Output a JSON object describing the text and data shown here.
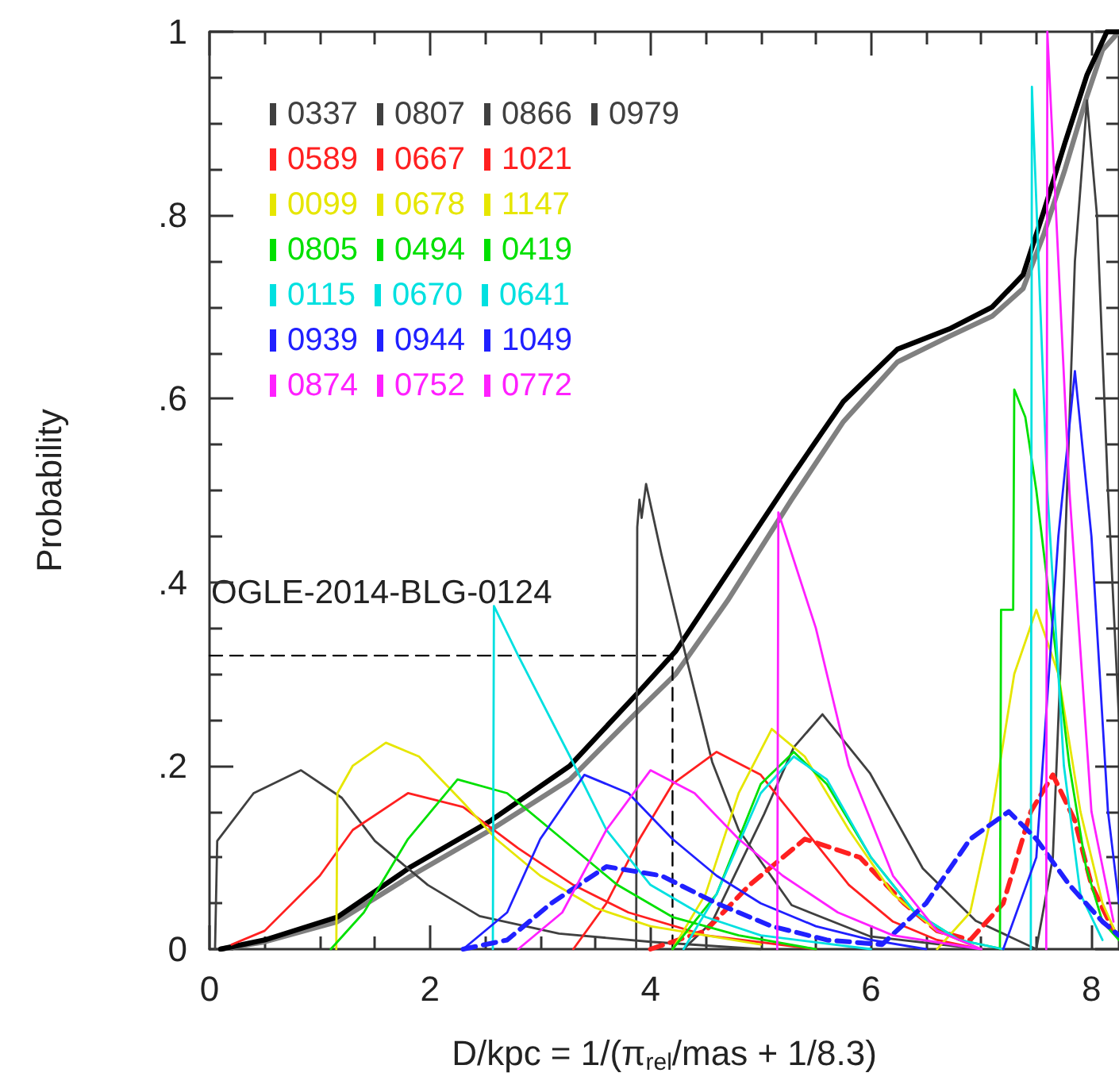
{
  "chart_data": {
    "type": "line",
    "xlabel": "D/kpc = 1/(π$_{rel}$/mas + 1/8.3)",
    "ylabel": "Probability",
    "xlim": [
      0,
      8.25
    ],
    "xticks": [
      0,
      2,
      4,
      6,
      8
    ],
    "ylim": [
      0,
      1
    ],
    "yticks": [
      0,
      {
        "value": 0.2,
        "label": ".2"
      },
      {
        "value": 0.4,
        "label": ".4"
      },
      {
        "value": 0.6,
        "label": ".6"
      },
      {
        "value": 0.8,
        "label": ".8"
      },
      1
    ],
    "grid": false,
    "legend": "top left",
    "marker": "none",
    "line_style": "solid",
    "annotations": [
      "OGLE-2014-BLG-0124"
    ],
    "series": [
      {
        "name": "0337",
        "color": "#404040",
        "x": [
          0.05,
          0.07,
          0.4,
          0.83,
          1.2,
          1.5,
          1.98,
          2.45,
          3.17,
          4,
          5
        ],
        "values": [
          0,
          0.118,
          0.17,
          0.195,
          0.165,
          0.118,
          0.07,
          0.036,
          0.017,
          0.008,
          0
        ]
      },
      {
        "name": "0807",
        "color": "#404040",
        "x": [
          3.87,
          3.88,
          3.9,
          3.92,
          3.96,
          4.1,
          4.32,
          4.56,
          4.8,
          5.28,
          5.99,
          7
        ],
        "values": [
          0,
          0.46,
          0.49,
          0.47,
          0.507,
          0.43,
          0.32,
          0.204,
          0.13,
          0.048,
          0.014,
          0
        ]
      },
      {
        "name": "0866",
        "color": "#404040",
        "x": [
          4.3,
          4.56,
          5.03,
          5.3,
          5.56,
          5.99,
          6.47,
          6.95,
          7.5
        ],
        "values": [
          0,
          0.03,
          0.147,
          0.22,
          0.256,
          0.192,
          0.088,
          0.031,
          0
        ]
      },
      {
        "name": "0979",
        "color": "#404040",
        "x": [
          7.5,
          7.65,
          7.75,
          7.85,
          7.96,
          8.05,
          8.15,
          8.25
        ],
        "values": [
          0,
          0.1,
          0.4,
          0.75,
          0.925,
          0.8,
          0.5,
          0.25
        ]
      },
      {
        "name": "0589",
        "color": "#ff2020",
        "x": [
          0.2,
          0.5,
          1,
          1.3,
          1.8,
          2.3,
          2.8,
          3.3,
          3.8,
          4.5,
          5.5
        ],
        "values": [
          0.005,
          0.02,
          0.08,
          0.13,
          0.17,
          0.155,
          0.11,
          0.07,
          0.04,
          0.015,
          0
        ]
      },
      {
        "name": "0667",
        "color": "#ff2020",
        "x": [
          3.3,
          3.6,
          3.9,
          4.2,
          4.6,
          5,
          5.4,
          5.8,
          6.2,
          6.6,
          7
        ],
        "values": [
          0,
          0.05,
          0.12,
          0.18,
          0.215,
          0.19,
          0.13,
          0.07,
          0.03,
          0.01,
          0
        ]
      },
      {
        "name": "1021",
        "color": "#ff2020",
        "line_style": "dashed",
        "x": [
          4,
          4.5,
          4.9,
          5.4,
          5.9,
          6.3,
          6.6,
          6.9,
          7.2,
          7.45,
          7.65,
          7.85,
          8,
          8.2
        ],
        "values": [
          0,
          0.02,
          0.07,
          0.12,
          0.1,
          0.05,
          0.02,
          0.01,
          0.05,
          0.15,
          0.19,
          0.14,
          0.07,
          0.02
        ]
      },
      {
        "name": "0099",
        "color": "#e6e600",
        "x": [
          1.15,
          1.16,
          1.3,
          1.6,
          1.9,
          2.3,
          2.6,
          3,
          3.5,
          4,
          5
        ],
        "values": [
          0,
          0.17,
          0.2,
          0.225,
          0.21,
          0.16,
          0.12,
          0.08,
          0.045,
          0.025,
          0.005
        ]
      },
      {
        "name": "0678",
        "color": "#e6e600",
        "x": [
          4.2,
          4.5,
          4.8,
          5.1,
          5.4,
          5.8,
          6.2,
          6.6,
          7
        ],
        "values": [
          0,
          0.06,
          0.17,
          0.24,
          0.21,
          0.13,
          0.06,
          0.02,
          0
        ]
      },
      {
        "name": "1147",
        "color": "#e6e600",
        "x": [
          6.6,
          6.9,
          7.1,
          7.3,
          7.5,
          7.7,
          7.9,
          8.1,
          8.25
        ],
        "values": [
          0,
          0.04,
          0.15,
          0.3,
          0.37,
          0.3,
          0.15,
          0.05,
          0.01
        ]
      },
      {
        "name": "0805",
        "color": "#00e000",
        "x": [
          1.1,
          1.4,
          1.8,
          2.25,
          2.7,
          3.2,
          3.7,
          4.2,
          4.8,
          5.5
        ],
        "values": [
          0,
          0.04,
          0.12,
          0.185,
          0.17,
          0.12,
          0.07,
          0.035,
          0.015,
          0
        ]
      },
      {
        "name": "0494",
        "color": "#00e000",
        "x": [
          4.2,
          4.6,
          5,
          5.3,
          5.6,
          6,
          6.4,
          6.8,
          7.2
        ],
        "values": [
          0,
          0.06,
          0.18,
          0.215,
          0.18,
          0.1,
          0.04,
          0.01,
          0
        ]
      },
      {
        "name": "0419",
        "color": "#00e000",
        "x": [
          7.17,
          7.18,
          7.29,
          7.3,
          7.4,
          7.5,
          7.65,
          7.8,
          7.95,
          8.1,
          8.25
        ],
        "values": [
          0,
          0.37,
          0.37,
          0.61,
          0.58,
          0.5,
          0.35,
          0.2,
          0.09,
          0.03,
          0.01
        ]
      },
      {
        "name": "0115",
        "color": "#00e0e0",
        "x": [
          2.57,
          2.58,
          2.8,
          3.27,
          3.6,
          4,
          4.5,
          5,
          6
        ],
        "values": [
          0,
          0.374,
          0.32,
          0.21,
          0.13,
          0.07,
          0.035,
          0.015,
          0
        ]
      },
      {
        "name": "0670",
        "color": "#00e0e0",
        "x": [
          4.3,
          4.6,
          5,
          5.3,
          5.6,
          6,
          6.4,
          6.8,
          7.2
        ],
        "values": [
          0,
          0.06,
          0.17,
          0.21,
          0.185,
          0.1,
          0.04,
          0.01,
          0
        ]
      },
      {
        "name": "0641",
        "color": "#00e0e0",
        "x": [
          7.45,
          7.46,
          7.6,
          7.75,
          7.9,
          8.1
        ],
        "values": [
          0,
          0.94,
          0.5,
          0.2,
          0.06,
          0.01
        ]
      },
      {
        "name": "0939",
        "color": "#2020ff",
        "x": [
          2.3,
          2.7,
          3,
          3.4,
          3.8,
          4.2,
          4.6,
          5,
          5.5,
          6,
          6.5
        ],
        "values": [
          0,
          0.04,
          0.12,
          0.19,
          0.17,
          0.12,
          0.08,
          0.05,
          0.025,
          0.01,
          0
        ]
      },
      {
        "name": "0944",
        "color": "#2020ff",
        "x": [
          7.2,
          7.5,
          7.7,
          7.85,
          8,
          8.15,
          8.25
        ],
        "values": [
          0,
          0.1,
          0.45,
          0.63,
          0.45,
          0.15,
          0.05
        ]
      },
      {
        "name": "1049",
        "color": "#2020ff",
        "line_style": "dashed",
        "x": [
          2.3,
          2.7,
          3.1,
          3.6,
          4.1,
          4.6,
          5.1,
          5.6,
          6.1,
          6.5,
          6.9,
          7.25,
          7.5,
          7.8,
          8.1,
          8.25
        ],
        "values": [
          0,
          0.01,
          0.05,
          0.09,
          0.08,
          0.05,
          0.025,
          0.01,
          0.005,
          0.05,
          0.12,
          0.15,
          0.12,
          0.07,
          0.03,
          0.015
        ]
      },
      {
        "name": "0874",
        "color": "#ff20ff",
        "x": [
          2.8,
          3.2,
          3.6,
          4,
          4.4,
          4.8,
          5.2,
          5.7,
          6.2,
          7
        ],
        "values": [
          0,
          0.04,
          0.13,
          0.195,
          0.17,
          0.12,
          0.08,
          0.04,
          0.015,
          0
        ]
      },
      {
        "name": "0752",
        "color": "#ff20ff",
        "x": [
          5.15,
          5.16,
          5.5,
          5.8,
          6.2,
          6.6,
          7
        ],
        "values": [
          0,
          0.476,
          0.35,
          0.2,
          0.08,
          0.02,
          0
        ]
      },
      {
        "name": "0772",
        "color": "#ff20ff",
        "x": [
          7.59,
          7.6,
          7.8,
          8,
          8.2
        ],
        "values": [
          0,
          1,
          0.5,
          0.15,
          0.03
        ]
      },
      {
        "color": "#808080",
        "x": [
          0.1,
          0.5,
          1.16,
          1.83,
          2.55,
          3.27,
          3.89,
          4.23,
          4.7,
          5.28,
          5.75,
          6.24,
          6.71,
          7.1,
          7.38,
          7.57,
          7.76,
          7.96,
          8.1,
          8.25
        ],
        "values": [
          0,
          0.008,
          0.03,
          0.08,
          0.13,
          0.185,
          0.26,
          0.3,
          0.38,
          0.49,
          0.575,
          0.64,
          0.668,
          0.69,
          0.72,
          0.78,
          0.85,
          0.93,
          0.98,
          1
        ]
      },
      {
        "color": "#000000",
        "x": [
          0.1,
          0.5,
          1.16,
          1.83,
          2.55,
          3.27,
          3.89,
          4.23,
          4.7,
          5.28,
          5.75,
          6.24,
          6.71,
          7.1,
          7.38,
          7.57,
          7.76,
          7.96,
          8.14,
          8.25
        ],
        "values": [
          0,
          0.01,
          0.035,
          0.09,
          0.14,
          0.2,
          0.28,
          0.325,
          0.41,
          0.515,
          0.597,
          0.654,
          0.676,
          0.7,
          0.735,
          0.805,
          0.879,
          0.953,
          1,
          1
        ]
      },
      {
        "color": "#000000",
        "line_style": "dashed",
        "x": [
          0,
          4.2,
          4.2
        ],
        "values": [
          0.32,
          0.32,
          0
        ]
      }
    ]
  }
}
